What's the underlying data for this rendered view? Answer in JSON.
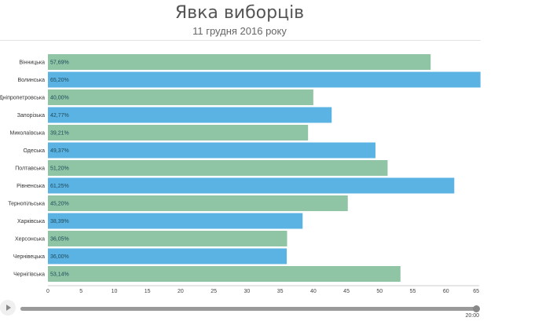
{
  "chart_data": {
    "type": "bar",
    "orientation": "horizontal",
    "title": "Явка виборців",
    "subtitle": "11 грудня 2016 року",
    "categories": [
      "Вінницька",
      "Волинська",
      "Дніпропетровська",
      "Запорізька",
      "Миколаївська",
      "Одеська",
      "Полтавська",
      "Рівненська",
      "Тернопільська",
      "Харківська",
      "Херсонська",
      "Чернівецька",
      "Чернігівська"
    ],
    "values": [
      57.69,
      65.2,
      40.0,
      42.77,
      39.21,
      49.37,
      51.2,
      61.25,
      45.2,
      38.39,
      36.05,
      36.0,
      53.14
    ],
    "value_labels": [
      "57,69%",
      "65,20%",
      "40,00%",
      "42,77%",
      "39,21%",
      "49,37%",
      "51,20%",
      "61,25%",
      "45,20%",
      "38,39%",
      "36,05%",
      "36,00%",
      "53,14%"
    ],
    "bar_colors": [
      "#8fc4a5",
      "#5bb3e3",
      "#8fc4a5",
      "#5bb3e3",
      "#8fc4a5",
      "#5bb3e3",
      "#8fc4a5",
      "#5bb3e3",
      "#8fc4a5",
      "#5bb3e3",
      "#8fc4a5",
      "#5bb3e3",
      "#8fc4a5"
    ],
    "xlim": [
      0,
      65
    ],
    "xticks": [
      0,
      5,
      10,
      15,
      20,
      25,
      30,
      35,
      40,
      45,
      50,
      55,
      60,
      65
    ],
    "xlabel": "",
    "ylabel": "",
    "grid": false,
    "legend": "none"
  },
  "timeline": {
    "time_label": "20:00",
    "progress": 1.0
  }
}
